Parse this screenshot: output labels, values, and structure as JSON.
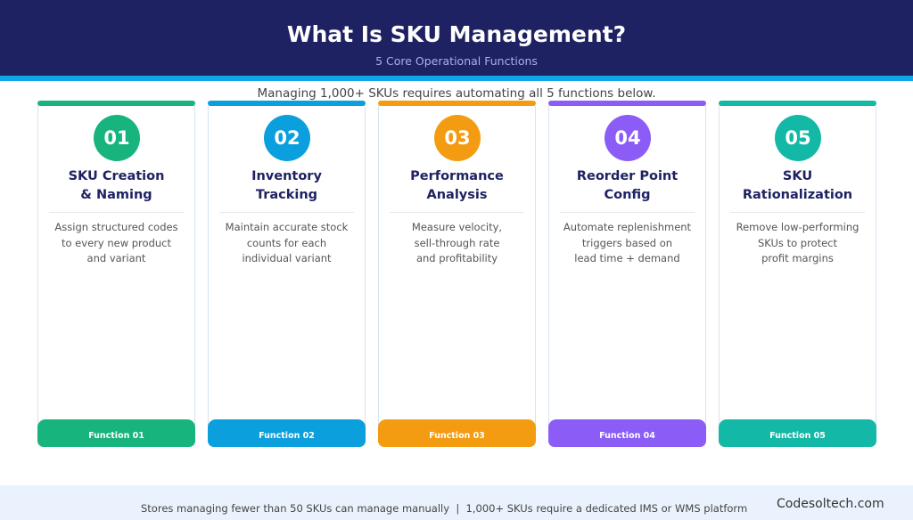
{
  "header": {
    "title": "What Is SKU Management?",
    "subtitle": "5 Core Operational Functions"
  },
  "intro": "Managing 1,000+ SKUs requires automating all 5 functions below.",
  "cards": [
    {
      "number": "01",
      "title_line1": "SKU Creation",
      "title_line2": "& Naming",
      "desc": [
        "Assign structured codes",
        "to every new product",
        "and variant"
      ],
      "footer": "Function 01",
      "color": "#17b47e"
    },
    {
      "number": "02",
      "title_line1": "Inventory",
      "title_line2": "Tracking",
      "desc": [
        "Maintain accurate stock",
        "counts for each",
        "individual variant"
      ],
      "footer": "Function 02",
      "color": "#0b9fde"
    },
    {
      "number": "03",
      "title_line1": "Performance",
      "title_line2": "Analysis",
      "desc": [
        "Measure velocity,",
        "sell-through rate",
        "and profitability"
      ],
      "footer": "Function 03",
      "color": "#f39c12"
    },
    {
      "number": "04",
      "title_line1": "Reorder Point",
      "title_line2": "Config",
      "desc": [
        "Automate replenishment",
        "triggers based on",
        "lead time + demand"
      ],
      "footer": "Function 04",
      "color": "#8b5cf6"
    },
    {
      "number": "05",
      "title_line1": "SKU",
      "title_line2": "Rationalization",
      "desc": [
        "Remove low-performing",
        "SKUs to protect",
        "profit margins"
      ],
      "footer": "Function 05",
      "color": "#14b8a6"
    }
  ],
  "footer": {
    "note": "Stores managing fewer than 50 SKUs can manage manually  |  1,000+ SKUs require a dedicated IMS or WMS platform",
    "brand": "Codesoltech.com"
  }
}
